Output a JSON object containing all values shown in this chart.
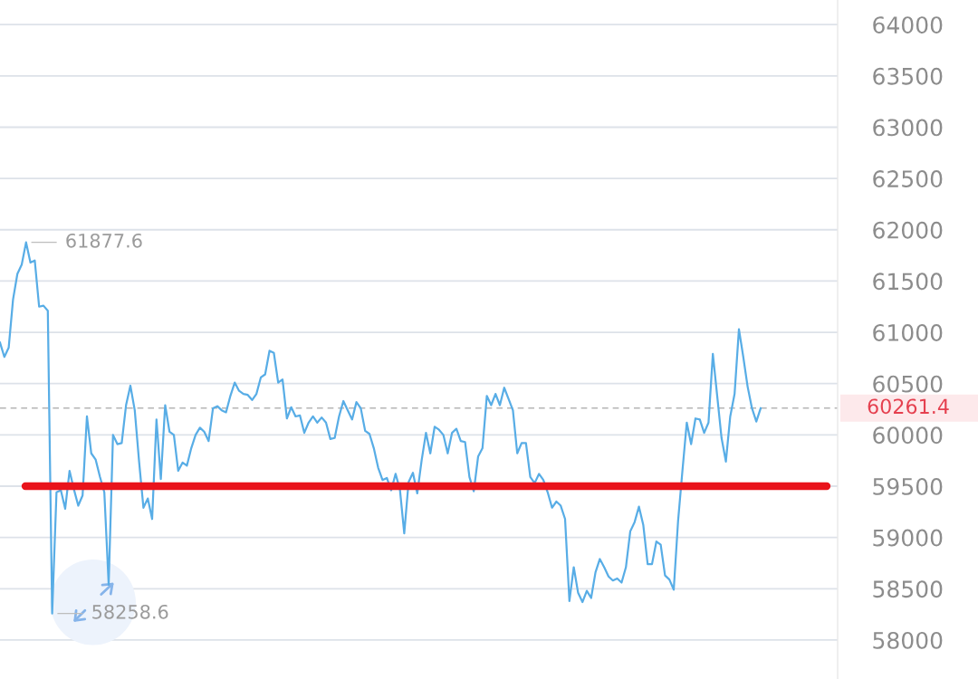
{
  "chart_data": {
    "type": "line",
    "categories": [
      null,
      null,
      null,
      null,
      null,
      null,
      null,
      null,
      null,
      null,
      null,
      null,
      null,
      null,
      null,
      null,
      null,
      null,
      null,
      null,
      null,
      null,
      null,
      null,
      null,
      null,
      null,
      null,
      null,
      null,
      null,
      null,
      null,
      null,
      null,
      null,
      null,
      null,
      null,
      null,
      null,
      null,
      null,
      null,
      null,
      null,
      null,
      null,
      null,
      null,
      null,
      null,
      null,
      null,
      null,
      null,
      null,
      null,
      null,
      null,
      null,
      null,
      null,
      null,
      null,
      null,
      null,
      null,
      null,
      null,
      null,
      null,
      null,
      null,
      null,
      null,
      null,
      null,
      null,
      null,
      null,
      null,
      null,
      null,
      null,
      null,
      null,
      null,
      null,
      null,
      null,
      null,
      null,
      null,
      null,
      null,
      null,
      null,
      null,
      null,
      null,
      null,
      null,
      null,
      null,
      null,
      null,
      null,
      null,
      null,
      null,
      null,
      null,
      null,
      null,
      null,
      null,
      null,
      null,
      null,
      null,
      null,
      null,
      null,
      null,
      null,
      null,
      null,
      null,
      null,
      null,
      null,
      null,
      null,
      null,
      null,
      null,
      null,
      null,
      null,
      null,
      null,
      null,
      null,
      null,
      null,
      null,
      null,
      null,
      null,
      null,
      null,
      null,
      null,
      null,
      null,
      null,
      null,
      null,
      null,
      null,
      null,
      null,
      null,
      null,
      null,
      null,
      null,
      null,
      null,
      null,
      null,
      null,
      null,
      null,
      null
    ],
    "series": [
      {
        "color": "#58ade6",
        "values": [
          60900,
          60760,
          60850,
          61320,
          61570,
          61660,
          61877.6,
          61680,
          61700,
          61250,
          61260,
          61210,
          58258.6,
          59440,
          59460,
          59280,
          59650,
          59470,
          59310,
          59410,
          60180,
          59820,
          59760,
          59590,
          59440,
          58540,
          60000,
          59910,
          59920,
          60290,
          60480,
          60240,
          59740,
          59290,
          59380,
          59180,
          60150,
          59570,
          60290,
          60030,
          60000,
          59650,
          59730,
          59700,
          59870,
          60000,
          60070,
          60030,
          59940,
          60260,
          60280,
          60240,
          60220,
          60380,
          60510,
          60430,
          60400,
          60390,
          60340,
          60400,
          60560,
          60590,
          60820,
          60800,
          60510,
          60540,
          60160,
          60270,
          60180,
          60190,
          60020,
          60120,
          60180,
          60120,
          60170,
          60120,
          59960,
          59970,
          60180,
          60330,
          60240,
          60150,
          60320,
          60260,
          60040,
          60010,
          59870,
          59680,
          59560,
          59580,
          59460,
          59620,
          59470,
          59040,
          59540,
          59630,
          59430,
          59750,
          60020,
          59820,
          60080,
          60050,
          60000,
          59820,
          60020,
          60060,
          59940,
          59930,
          59590,
          59450,
          59790,
          59870,
          60380,
          60290,
          60400,
          60290,
          60460,
          60350,
          60240,
          59820,
          59920,
          59920,
          59590,
          59530,
          59620,
          59560,
          59440,
          59290,
          59350,
          59310,
          59180,
          58380,
          58710,
          58460,
          58370,
          58480,
          58410,
          58660,
          58790,
          58710,
          58620,
          58580,
          58600,
          58560,
          58710,
          59060,
          59150,
          59300,
          59120,
          58740,
          58740,
          58960,
          58930,
          58630,
          58590,
          58490,
          59160,
          59650,
          60120,
          59910,
          60160,
          60150,
          60020,
          60120,
          60790,
          60380,
          59970,
          59740,
          60180,
          60400,
          61030,
          60760,
          60470,
          60260,
          60130,
          60260
        ]
      }
    ],
    "ylim": [
      57620,
      64240
    ],
    "yticks": [
      58000,
      58500,
      59000,
      59500,
      60000,
      60500,
      61000,
      61500,
      62000,
      62500,
      63000,
      63500,
      64000
    ],
    "grid": "y",
    "tick_labels": "y",
    "annotations": [
      "61877.6",
      "58258.6"
    ],
    "ref_lines": [
      {
        "axis": "y",
        "value": 60261.4,
        "label": "60261.4",
        "color": "#b5b5b5",
        "line_style": "dashed"
      },
      {
        "axis": "y",
        "value": 59500,
        "color": "#e9131b",
        "line_style": "solid"
      }
    ]
  }
}
